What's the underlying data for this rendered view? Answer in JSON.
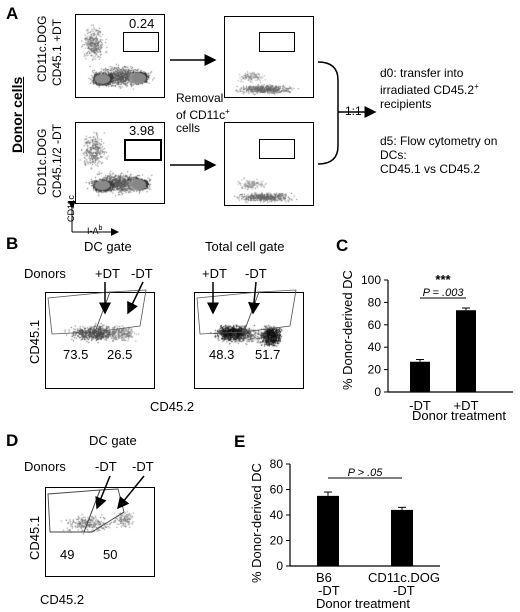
{
  "panel_a": {
    "letter": "A",
    "donor_cells_label": "Donor cells",
    "top_row_label": [
      "CD11c.DOG",
      "CD45.1 +DT"
    ],
    "bottom_row_label": [
      "CD11c.DOG",
      "CD45.1/2 -DT"
    ],
    "top_gate_value": "0.24",
    "bottom_gate_value": "3.98",
    "removal_text": [
      "Removal",
      "of CD11c",
      "cells"
    ],
    "removal_sup": "+",
    "axis_y": "CD11c",
    "axis_x_base": "I-A",
    "axis_x_sup": "b",
    "ratio": "1:1",
    "d0_text": [
      "d0: transfer into",
      "irradiated CD45.2",
      "recipients"
    ],
    "d0_sup": "+",
    "d5_text": [
      "d5: Flow cytometry on DCs:",
      "CD45.1 vs CD45.2"
    ]
  },
  "panel_b": {
    "letter": "B",
    "dc_gate_title": "DC gate",
    "total_gate_title": "Total cell gate",
    "donors_label": "Donors",
    "plus_dt": "+DT",
    "minus_dt": "-DT",
    "dc_left_value": "73.5",
    "dc_right_value": "26.5",
    "total_left_value": "48.3",
    "total_right_value": "51.7",
    "y_axis": "CD45.1",
    "x_axis": "CD45.2"
  },
  "panel_c": {
    "letter": "C",
    "chart_data": {
      "type": "bar",
      "categories": [
        "-DT",
        "+DT"
      ],
      "values": [
        27,
        73
      ],
      "errors": [
        2,
        2
      ],
      "ylim": [
        0,
        100
      ],
      "yticks": [
        "0",
        "20",
        "40",
        "60",
        "80",
        "100"
      ],
      "ylabel": "% Donor-derived DC",
      "xlabel": "Donor treatment",
      "significance": "***",
      "p_label": "P = .003"
    }
  },
  "panel_d": {
    "letter": "D",
    "title": "DC gate",
    "donors_label": "Donors",
    "left_dt": "-DT",
    "right_dt": "-DT",
    "left_value": "49",
    "right_value": "50",
    "y_axis": "CD45.1",
    "x_axis": "CD45.2"
  },
  "panel_e": {
    "letter": "E",
    "chart_data": {
      "type": "bar",
      "categories": [
        "B6\n-DT",
        "CD11c.DOG\n-DT"
      ],
      "category_lines": [
        [
          "B6",
          "-DT"
        ],
        [
          "CD11c.DOG",
          "-DT"
        ]
      ],
      "values": [
        55,
        44
      ],
      "errors": [
        3,
        2
      ],
      "ylim": [
        0,
        80
      ],
      "yticks": [
        "0",
        "20",
        "40",
        "60",
        "80"
      ],
      "ylabel": "% Donor-derived DC",
      "xlabel": "Donor treatment",
      "p_label": "P > .05"
    }
  }
}
